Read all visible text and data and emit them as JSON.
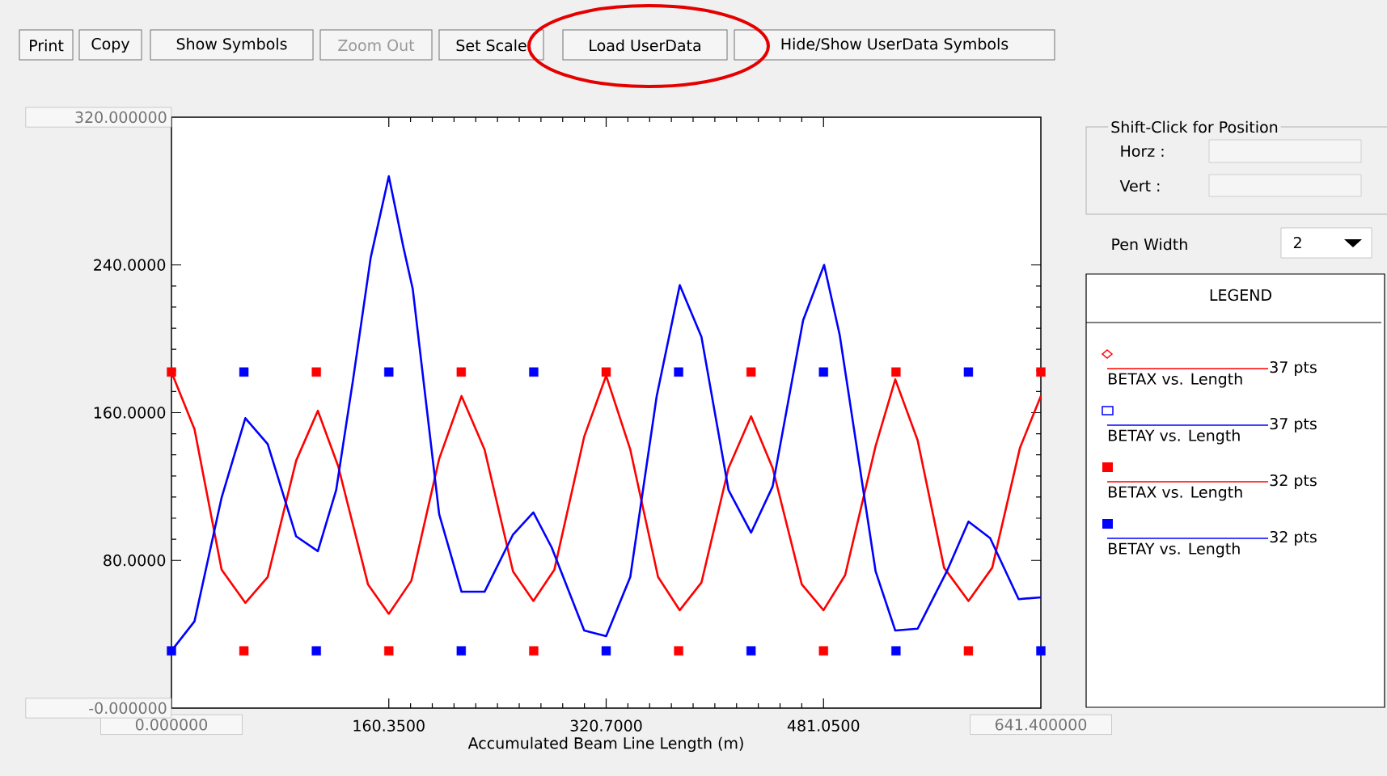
{
  "chart_data": {
    "type": "line",
    "xlabel": "Accumulated Beam Line Length (m)",
    "xlim": [
      0,
      641.4
    ],
    "ylim": [
      0,
      320
    ],
    "xticks": [
      {
        "value": 0,
        "label": "0.000000"
      },
      {
        "value": 160.35,
        "label": "160.3500"
      },
      {
        "value": 320.7,
        "label": "320.7000"
      },
      {
        "value": 481.05,
        "label": "481.0500"
      },
      {
        "value": 641.4,
        "label": "641.400000"
      }
    ],
    "yticks": [
      {
        "value": 0,
        "label": "-0.000000"
      },
      {
        "value": 80,
        "label": "80.0000"
      },
      {
        "value": 160,
        "label": "160.0000"
      },
      {
        "value": 240,
        "label": "240.0000"
      },
      {
        "value": 320,
        "label": "320.000000"
      }
    ],
    "legend": "right",
    "legend_title": "LEGEND",
    "series": [
      {
        "name": "BETAX vs. Length",
        "color": "#ff0000",
        "x": [
          0,
          17,
          37,
          54.5,
          71,
          92,
          108,
          123,
          145,
          160.35,
          177,
          197.5,
          214,
          231,
          252,
          267,
          282.5,
          304.5,
          320.7,
          338.5,
          359,
          375,
          391,
          411,
          427.6,
          443.5,
          465,
          481.05,
          497,
          519.5,
          534,
          550.5,
          570,
          588,
          605.5,
          626,
          641.4
        ],
        "values": [
          182,
          151,
          75,
          57,
          71,
          134,
          161,
          131,
          67,
          51,
          69,
          135,
          169,
          140,
          74,
          58,
          75,
          147,
          180,
          140,
          71,
          53,
          68,
          130,
          158,
          130,
          67,
          53,
          72,
          142,
          178,
          145,
          76,
          58,
          76,
          141,
          169
        ]
      },
      {
        "name": "BETAY vs. Length",
        "color": "#0000ff",
        "x": [
          0,
          17,
          37,
          54.5,
          71,
          92,
          108,
          121.5,
          134,
          147,
          160.35,
          171,
          178,
          197.5,
          214,
          231,
          252,
          267,
          280.5,
          304.5,
          320.7,
          338.5,
          358,
          375,
          391,
          411,
          427.6,
          443.5,
          466,
          481.5,
          493,
          519.5,
          534,
          550.5,
          572,
          588,
          604,
          625,
          641.4
        ],
        "values": [
          31,
          47,
          114,
          157,
          143,
          93,
          85,
          118,
          178,
          244,
          288,
          250,
          227,
          105,
          63,
          63,
          94,
          106,
          87,
          42,
          39,
          71,
          169,
          229,
          201,
          118,
          95,
          120,
          210,
          240,
          202,
          74,
          42,
          43,
          74,
          101,
          92,
          59,
          60
        ]
      },
      {
        "name": "BETAX vs. Length",
        "type": "scatter",
        "marker": "square",
        "color": "#ff0000",
        "x": [
          0,
          53.45,
          106.9,
          160.35,
          213.8,
          267.25,
          320.7,
          374.15,
          427.6,
          481.05,
          534.5,
          587.95,
          641.4
        ],
        "values": [
          182,
          31,
          182,
          31,
          182,
          31,
          182,
          31,
          182,
          31,
          182,
          31,
          182
        ]
      },
      {
        "name": "BETAY vs. Length",
        "type": "scatter",
        "marker": "square",
        "color": "#0000ff",
        "x": [
          0,
          53.45,
          106.9,
          160.35,
          213.8,
          267.25,
          320.7,
          374.15,
          427.6,
          481.05,
          534.5,
          587.95,
          641.4
        ],
        "values": [
          31,
          182,
          31,
          182,
          31,
          182,
          31,
          182,
          31,
          182,
          31,
          182,
          31
        ]
      }
    ],
    "annotations": [
      "Print",
      "Copy",
      "Show Symbols",
      "Zoom Out",
      "Set Scale",
      "Load UserData",
      "Hide/Show UserData Symbols",
      "Shift-Click for Position",
      "Horz :",
      "Vert :",
      "Pen Width",
      "2",
      "37 pts",
      "37 pts",
      "32 pts",
      "32 pts"
    ]
  }
}
